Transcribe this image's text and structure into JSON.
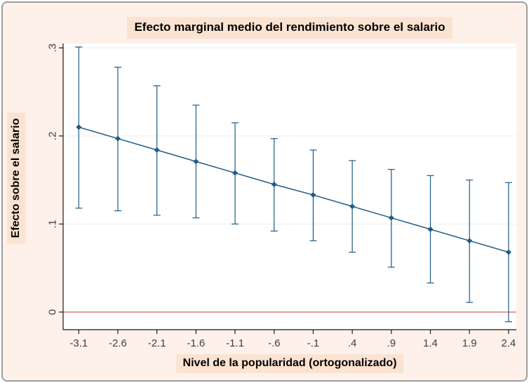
{
  "figure": {
    "title": "Efecto marginal medio del rendimiento sobre el salario",
    "ylabel": "Efecto sobre el salario",
    "xlabel": "Nivel de la popularidad (ortogonalizado)"
  },
  "colors": {
    "figure_background": "#fdf1e9",
    "label_highlight": "#fbe3d1",
    "plot_background": "#ffffff",
    "series": "#1f5b87",
    "zero_line": "#d75f5f",
    "grid": "#ededed",
    "axis": "#1a1a1a",
    "tick_text": "#404040",
    "border": "#9e9e9e"
  },
  "chart_data": {
    "type": "line",
    "title": "Efecto marginal medio del rendimiento sobre el salario",
    "xlabel": "Nivel de la popularidad (ortogonalizado)",
    "ylabel": "Efecto sobre el salario",
    "x": [
      -3.1,
      -2.6,
      -2.1,
      -1.6,
      -1.1,
      -0.6,
      -0.1,
      0.4,
      0.9,
      1.4,
      1.9,
      2.4
    ],
    "series": [
      {
        "name": "Efecto marginal medio",
        "values": [
          0.21,
          0.197,
          0.184,
          0.171,
          0.158,
          0.145,
          0.133,
          0.12,
          0.107,
          0.094,
          0.081,
          0.068
        ],
        "ci_low": [
          0.118,
          0.115,
          0.11,
          0.107,
          0.1,
          0.092,
          0.081,
          0.068,
          0.051,
          0.033,
          0.011,
          -0.011
        ],
        "ci_high": [
          0.301,
          0.278,
          0.257,
          0.235,
          0.215,
          0.197,
          0.184,
          0.172,
          0.162,
          0.155,
          0.15,
          0.147
        ]
      }
    ],
    "xticks": {
      "values": [
        -3.1,
        -2.6,
        -2.1,
        -1.6,
        -1.1,
        -0.6,
        -0.1,
        0.4,
        0.9,
        1.4,
        1.9,
        2.4
      ],
      "labels": [
        "-3.1",
        "-2.6",
        "-2.1",
        "-1.6",
        "-1.1",
        "-.6",
        "-.1",
        ".4",
        ".9",
        "1.4",
        "1.9",
        "2.4"
      ]
    },
    "yticks": {
      "values": [
        0,
        0.1,
        0.2,
        0.3
      ],
      "labels": [
        "0",
        ".1",
        ".2",
        ".3"
      ]
    },
    "xlim": [
      -3.3,
      2.5
    ],
    "ylim": [
      -0.02,
      0.305
    ],
    "zero_line": 0,
    "grid": true,
    "legend": "none"
  }
}
